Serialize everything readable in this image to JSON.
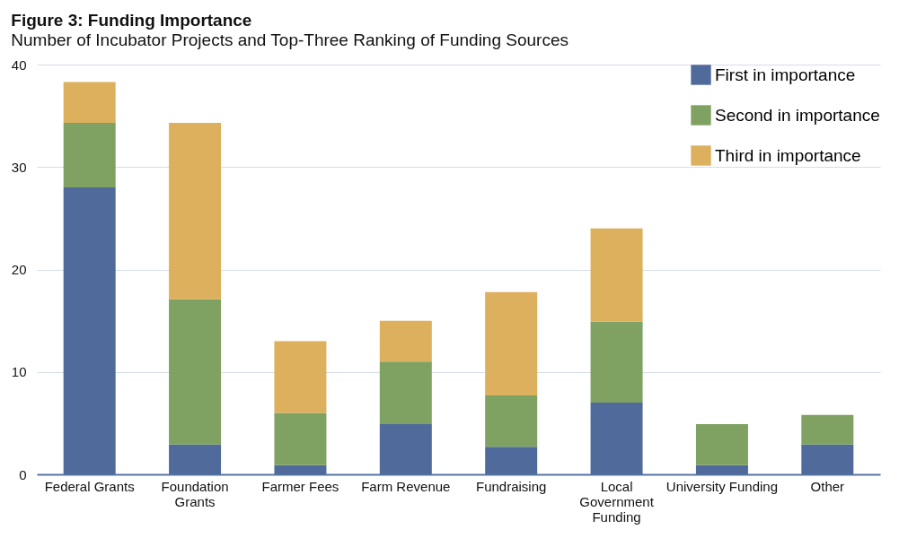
{
  "chart_data": {
    "type": "bar",
    "title": "Figure 3: Funding Importance",
    "subtitle": "Number of Incubator Projects and Top-Three Ranking of Funding Sources",
    "categories": [
      "Federal Grants",
      "Foundation\nGrants",
      "Farmer Fees",
      "Farm Revenue",
      "Fundraising",
      "Local\nGovernment\nFunding",
      "University Funding",
      "Other"
    ],
    "series": [
      {
        "name": "First in importance",
        "color": "#506b9b",
        "values": [
          28,
          2.9,
          0.9,
          4.9,
          2.7,
          7,
          0.9,
          2.9
        ]
      },
      {
        "name": "Second in importance",
        "color": "#7fa262",
        "values": [
          6.3,
          14.2,
          5.1,
          6.1,
          5,
          7.9,
          4,
          2.9
        ]
      },
      {
        "name": "Third in importance",
        "color": "#dcb05c",
        "values": [
          4,
          17.2,
          7,
          4,
          10.1,
          9.1,
          null,
          null
        ]
      }
    ],
    "stacked": true,
    "ylim": [
      0,
      40
    ],
    "yticks": [
      0,
      10,
      20,
      30,
      40
    ],
    "grid": "y",
    "legend": "top right"
  }
}
